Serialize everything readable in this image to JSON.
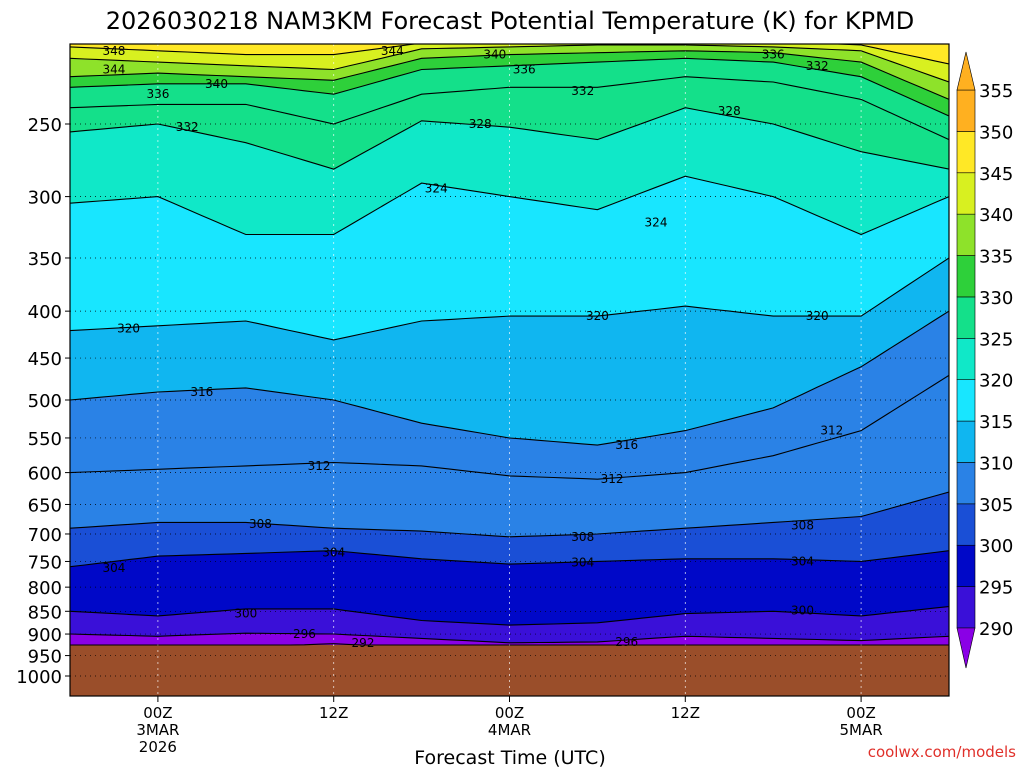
{
  "chart_data": {
    "type": "heatmap",
    "title": "2026030218 NAM3KM Forecast Potential Temperature (K) for KPMD",
    "xlabel": "Forecast Time (UTC)",
    "ylabel": "",
    "credit": "coolwx.com/models",
    "y_scale": "log",
    "y_inverted": true,
    "y_ticks": [
      250,
      300,
      350,
      400,
      450,
      500,
      550,
      600,
      650,
      700,
      750,
      800,
      850,
      900,
      950,
      1000
    ],
    "y_tick_labels": [
      "250",
      "300",
      "350",
      "400",
      "450",
      "500",
      "550",
      "600",
      "650",
      "700",
      "750",
      "800",
      "850",
      "900",
      "950",
      "1000"
    ],
    "x_ticks": [
      {
        "hour": 6,
        "lines": [
          "00Z",
          "3MAR",
          "2026"
        ]
      },
      {
        "hour": 18,
        "lines": [
          "12Z"
        ]
      },
      {
        "hour": 30,
        "lines": [
          "00Z",
          "4MAR"
        ]
      },
      {
        "hour": 42,
        "lines": [
          "12Z"
        ]
      },
      {
        "hour": 54,
        "lines": [
          "00Z",
          "5MAR"
        ]
      }
    ],
    "xlim": [
      0,
      60
    ],
    "ylim": [
      1000,
      200
    ],
    "surface_pressure_hpa": 925,
    "colorbar": {
      "levels": [
        290,
        295,
        300,
        305,
        310,
        315,
        320,
        325,
        330,
        335,
        340,
        345,
        350,
        355
      ],
      "labels": [
        "290",
        "295",
        "300",
        "305",
        "310",
        "315",
        "320",
        "325",
        "330",
        "335",
        "340",
        "345",
        "350",
        "355"
      ],
      "colors": [
        "#8a00e6",
        "#3a10d8",
        "#0008c8",
        "#1a4fd6",
        "#2a82e6",
        "#10b6f0",
        "#18e6ff",
        "#10e8c8",
        "#14e08a",
        "#2ed03a",
        "#8ee22a",
        "#d8f020",
        "#ffe826",
        "#ffb020"
      ]
    },
    "isentropes": [
      {
        "theta": 292,
        "profile": [
          [
            0,
            930
          ],
          [
            6,
            925
          ],
          [
            12,
            930
          ],
          [
            18,
            922
          ],
          [
            24,
            932
          ],
          [
            30,
            935
          ],
          [
            36,
            935
          ],
          [
            42,
            930
          ],
          [
            48,
            932
          ],
          [
            54,
            935
          ],
          [
            60,
            930
          ]
        ]
      },
      {
        "theta": 296,
        "profile": [
          [
            0,
            900
          ],
          [
            6,
            905
          ],
          [
            12,
            898
          ],
          [
            18,
            900
          ],
          [
            24,
            910
          ],
          [
            30,
            920
          ],
          [
            36,
            918
          ],
          [
            42,
            905
          ],
          [
            48,
            910
          ],
          [
            54,
            915
          ],
          [
            60,
            905
          ]
        ]
      },
      {
        "theta": 300,
        "profile": [
          [
            0,
            850
          ],
          [
            6,
            860
          ],
          [
            12,
            845
          ],
          [
            18,
            845
          ],
          [
            24,
            870
          ],
          [
            30,
            880
          ],
          [
            36,
            875
          ],
          [
            42,
            855
          ],
          [
            48,
            850
          ],
          [
            54,
            860
          ],
          [
            60,
            840
          ]
        ]
      },
      {
        "theta": 304,
        "profile": [
          [
            0,
            760
          ],
          [
            6,
            740
          ],
          [
            12,
            735
          ],
          [
            18,
            730
          ],
          [
            24,
            745
          ],
          [
            30,
            755
          ],
          [
            36,
            750
          ],
          [
            42,
            745
          ],
          [
            48,
            745
          ],
          [
            54,
            750
          ],
          [
            60,
            730
          ]
        ]
      },
      {
        "theta": 308,
        "profile": [
          [
            0,
            690
          ],
          [
            6,
            680
          ],
          [
            12,
            680
          ],
          [
            18,
            690
          ],
          [
            24,
            695
          ],
          [
            30,
            705
          ],
          [
            36,
            700
          ],
          [
            42,
            690
          ],
          [
            48,
            680
          ],
          [
            54,
            670
          ],
          [
            60,
            630
          ]
        ]
      },
      {
        "theta": 312,
        "profile": [
          [
            0,
            600
          ],
          [
            6,
            595
          ],
          [
            12,
            590
          ],
          [
            18,
            585
          ],
          [
            24,
            590
          ],
          [
            30,
            605
          ],
          [
            36,
            610
          ],
          [
            42,
            600
          ],
          [
            48,
            575
          ],
          [
            54,
            540
          ],
          [
            60,
            470
          ]
        ]
      },
      {
        "theta": 316,
        "profile": [
          [
            0,
            500
          ],
          [
            6,
            490
          ],
          [
            12,
            485
          ],
          [
            18,
            500
          ],
          [
            24,
            530
          ],
          [
            30,
            550
          ],
          [
            36,
            560
          ],
          [
            42,
            540
          ],
          [
            48,
            510
          ],
          [
            54,
            460
          ],
          [
            60,
            400
          ]
        ]
      },
      {
        "theta": 320,
        "profile": [
          [
            0,
            420
          ],
          [
            6,
            415
          ],
          [
            12,
            410
          ],
          [
            18,
            430
          ],
          [
            24,
            410
          ],
          [
            30,
            405
          ],
          [
            36,
            405
          ],
          [
            42,
            395
          ],
          [
            48,
            405
          ],
          [
            54,
            405
          ],
          [
            60,
            350
          ]
        ]
      },
      {
        "theta": 324,
        "profile": [
          [
            0,
            305
          ],
          [
            6,
            300
          ],
          [
            12,
            330
          ],
          [
            18,
            330
          ],
          [
            24,
            290
          ],
          [
            30,
            300
          ],
          [
            36,
            310
          ],
          [
            42,
            285
          ],
          [
            48,
            300
          ],
          [
            54,
            330
          ],
          [
            60,
            300
          ]
        ]
      },
      {
        "theta": 328,
        "profile": [
          [
            0,
            255
          ],
          [
            6,
            250
          ],
          [
            12,
            262
          ],
          [
            18,
            280
          ],
          [
            24,
            248
          ],
          [
            30,
            252
          ],
          [
            36,
            260
          ],
          [
            42,
            240
          ],
          [
            48,
            250
          ],
          [
            54,
            268
          ],
          [
            60,
            280
          ]
        ]
      },
      {
        "theta": 332,
        "profile": [
          [
            0,
            240
          ],
          [
            6,
            238
          ],
          [
            12,
            238
          ],
          [
            18,
            250
          ],
          [
            24,
            232
          ],
          [
            30,
            228
          ],
          [
            36,
            228
          ],
          [
            42,
            222
          ],
          [
            48,
            225
          ],
          [
            54,
            235
          ],
          [
            60,
            260
          ]
        ]
      },
      {
        "theta": 336,
        "profile": [
          [
            0,
            228
          ],
          [
            6,
            226
          ],
          [
            12,
            226
          ],
          [
            18,
            232
          ],
          [
            24,
            218
          ],
          [
            30,
            216
          ],
          [
            36,
            214
          ],
          [
            42,
            212
          ],
          [
            48,
            214
          ],
          [
            54,
            222
          ],
          [
            60,
            245
          ]
        ]
      },
      {
        "theta": 340,
        "profile": [
          [
            0,
            222
          ],
          [
            6,
            220
          ],
          [
            12,
            222
          ],
          [
            18,
            224
          ],
          [
            24,
            212
          ],
          [
            30,
            210
          ],
          [
            36,
            209
          ],
          [
            42,
            208
          ],
          [
            48,
            209
          ],
          [
            54,
            214
          ],
          [
            60,
            235
          ]
        ]
      },
      {
        "theta": 344,
        "profile": [
          [
            0,
            212
          ],
          [
            6,
            214
          ],
          [
            12,
            216
          ],
          [
            18,
            218
          ],
          [
            24,
            207
          ],
          [
            30,
            206
          ],
          [
            36,
            205
          ],
          [
            42,
            205
          ],
          [
            48,
            206
          ],
          [
            54,
            208
          ],
          [
            60,
            225
          ]
        ]
      },
      {
        "theta": 348,
        "profile": [
          [
            0,
            206
          ],
          [
            6,
            208
          ],
          [
            12,
            210
          ],
          [
            18,
            210
          ],
          [
            24,
            204
          ],
          [
            30,
            203
          ],
          [
            36,
            203
          ],
          [
            42,
            203
          ],
          [
            48,
            203
          ],
          [
            54,
            205
          ],
          [
            60,
            215
          ]
        ]
      }
    ],
    "contour_labels": [
      {
        "text": "348",
        "hour": 3,
        "p": 208
      },
      {
        "text": "344",
        "hour": 3,
        "p": 218
      },
      {
        "text": "344",
        "hour": 22,
        "p": 208
      },
      {
        "text": "340",
        "hour": 29,
        "p": 210
      },
      {
        "text": "336",
        "hour": 48,
        "p": 210
      },
      {
        "text": "336",
        "hour": 31,
        "p": 218
      },
      {
        "text": "332",
        "hour": 51,
        "p": 216
      },
      {
        "text": "340",
        "hour": 10,
        "p": 226
      },
      {
        "text": "336",
        "hour": 6,
        "p": 232
      },
      {
        "text": "332",
        "hour": 35,
        "p": 230
      },
      {
        "text": "332",
        "hour": 8,
        "p": 252
      },
      {
        "text": "328",
        "hour": 28,
        "p": 250
      },
      {
        "text": "328",
        "hour": 45,
        "p": 242
      },
      {
        "text": "324",
        "hour": 25,
        "p": 294
      },
      {
        "text": "324",
        "hour": 40,
        "p": 320
      },
      {
        "text": "320",
        "hour": 4,
        "p": 418
      },
      {
        "text": "320",
        "hour": 36,
        "p": 405
      },
      {
        "text": "320",
        "hour": 51,
        "p": 405
      },
      {
        "text": "316",
        "hour": 9,
        "p": 490
      },
      {
        "text": "316",
        "hour": 38,
        "p": 560
      },
      {
        "text": "312",
        "hour": 52,
        "p": 540
      },
      {
        "text": "312",
        "hour": 17,
        "p": 590
      },
      {
        "text": "312",
        "hour": 37,
        "p": 610
      },
      {
        "text": "308",
        "hour": 13,
        "p": 683
      },
      {
        "text": "308",
        "hour": 35,
        "p": 705
      },
      {
        "text": "308",
        "hour": 50,
        "p": 685
      },
      {
        "text": "304",
        "hour": 18,
        "p": 733
      },
      {
        "text": "304",
        "hour": 3,
        "p": 762
      },
      {
        "text": "304",
        "hour": 35,
        "p": 752
      },
      {
        "text": "304",
        "hour": 50,
        "p": 750
      },
      {
        "text": "300",
        "hour": 12,
        "p": 855
      },
      {
        "text": "300",
        "hour": 50,
        "p": 848
      },
      {
        "text": "296",
        "hour": 16,
        "p": 900
      },
      {
        "text": "292",
        "hour": 20,
        "p": 920
      },
      {
        "text": "296",
        "hour": 38,
        "p": 918
      }
    ]
  }
}
